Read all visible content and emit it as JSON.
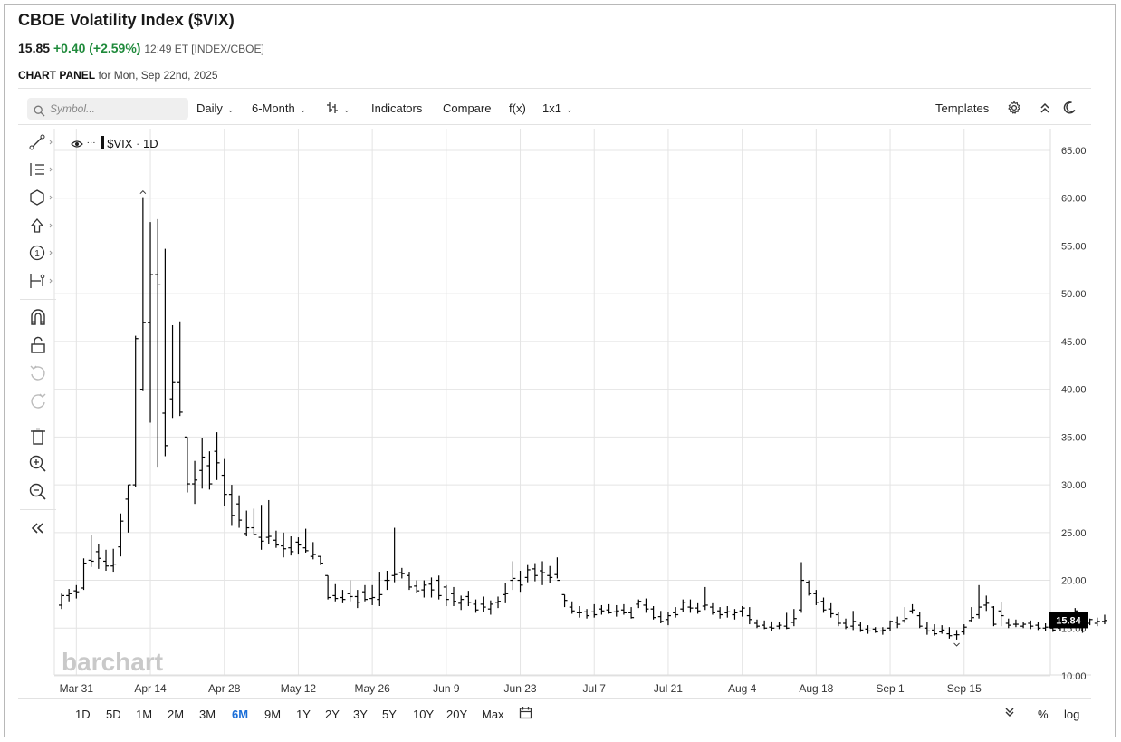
{
  "header": {
    "title": "CBOE Volatility Index ($VIX)",
    "last": "15.85",
    "change": "+0.40 (+2.59%)",
    "meta": "12:49 ET [INDEX/CBOE]",
    "panel_label": "CHART PANEL",
    "panel_date": "for Mon, Sep 22nd, 2025"
  },
  "toolbar": {
    "search_placeholder": "Symbol...",
    "interval": "Daily",
    "period": "6-Month",
    "indicators": "Indicators",
    "compare": "Compare",
    "fx": "f(x)",
    "layout": "1x1",
    "templates": "Templates"
  },
  "legend": {
    "symbol": "$VIX",
    "interval": "1D"
  },
  "watermark": "barchart",
  "price_badge": "15.84",
  "range_buttons": [
    "1D",
    "5D",
    "1M",
    "2M",
    "3M",
    "6M",
    "9M",
    "1Y",
    "2Y",
    "3Y",
    "5Y",
    "10Y",
    "20Y",
    "Max"
  ],
  "active_range": "6M",
  "bottom_right": {
    "percent": "%",
    "log": "log"
  },
  "colors": {
    "accent": "#1a6ed8",
    "change": "#1f8a3b",
    "bars": "#000000",
    "grid": "#e4e4e4",
    "badge": "#000000"
  },
  "chart_data": {
    "type": "ohlc",
    "title": "$VIX",
    "ylim": [
      10,
      65
    ],
    "y_ticks": [
      "65.00",
      "60.00",
      "55.00",
      "50.00",
      "45.00",
      "40.00",
      "35.00",
      "30.00",
      "25.00",
      "20.00",
      "15.00",
      "10.00"
    ],
    "x_labels": [
      {
        "label": "Mar 31",
        "index": 2
      },
      {
        "label": "Apr 14",
        "index": 12
      },
      {
        "label": "Apr 28",
        "index": 22
      },
      {
        "label": "May 12",
        "index": 32
      },
      {
        "label": "May 26",
        "index": 42
      },
      {
        "label": "Jun 9",
        "index": 52
      },
      {
        "label": "Jun 23",
        "index": 62
      },
      {
        "label": "Jul 7",
        "index": 72
      },
      {
        "label": "Jul 21",
        "index": 82
      },
      {
        "label": "Aug 4",
        "index": 92
      },
      {
        "label": "Aug 18",
        "index": 102
      },
      {
        "label": "Sep 1",
        "index": 112
      },
      {
        "label": "Sep 15",
        "index": 122
      }
    ],
    "ohlc": [
      [
        17.4,
        18.6,
        17.0,
        18.4
      ],
      [
        18.4,
        19.1,
        17.8,
        18.6
      ],
      [
        18.9,
        19.5,
        18.1,
        18.8
      ],
      [
        19.2,
        22.3,
        19.0,
        21.8
      ],
      [
        22.1,
        24.7,
        21.4,
        22.0
      ],
      [
        23.0,
        23.8,
        21.2,
        22.3
      ],
      [
        22.0,
        23.2,
        21.0,
        21.5
      ],
      [
        21.5,
        23.3,
        20.9,
        21.7
      ],
      [
        23.5,
        27.0,
        22.5,
        26.2
      ],
      [
        28.5,
        30.0,
        25.0,
        30.0
      ],
      [
        30.0,
        45.6,
        29.8,
        45.3
      ],
      [
        40.0,
        60.1,
        39.8,
        47.0
      ],
      [
        47.0,
        57.5,
        36.5,
        52.0
      ],
      [
        52.0,
        57.8,
        31.8,
        51.0
      ],
      [
        37.5,
        54.7,
        33.0,
        34.1
      ],
      [
        39.0,
        46.7,
        37.0,
        40.7
      ],
      [
        40.7,
        47.1,
        37.2,
        37.6
      ],
      [
        35.0,
        35.0,
        29.2,
        30.1
      ],
      [
        30.1,
        32.5,
        28.0,
        30.5
      ],
      [
        31.5,
        34.9,
        29.6,
        32.9
      ],
      [
        32.0,
        33.5,
        29.5,
        30.1
      ],
      [
        33.5,
        35.5,
        30.5,
        32.3
      ],
      [
        31.0,
        32.7,
        27.8,
        29.0
      ],
      [
        29.0,
        30.0,
        25.7,
        26.8
      ],
      [
        28.0,
        28.9,
        25.5,
        26.3
      ],
      [
        24.9,
        27.3,
        24.6,
        25.5
      ],
      [
        25.5,
        27.5,
        24.7,
        24.8
      ],
      [
        24.5,
        27.9,
        23.2,
        24.1
      ],
      [
        24.5,
        28.4,
        23.8,
        24.6
      ],
      [
        24.2,
        25.2,
        23.4,
        23.7
      ],
      [
        23.6,
        25.0,
        22.4,
        23.3
      ],
      [
        23.4,
        24.6,
        22.6,
        23.0
      ],
      [
        24.0,
        24.5,
        22.7,
        23.7
      ],
      [
        23.4,
        25.4,
        22.9,
        23.1
      ],
      [
        22.5,
        24.0,
        22.2,
        22.7
      ],
      [
        22.5,
        22.5,
        21.6,
        21.8
      ],
      [
        20.5,
        20.5,
        18.0,
        18.2
      ],
      [
        18.4,
        19.6,
        17.8,
        18.1
      ],
      [
        18.2,
        19.0,
        17.6,
        18.0
      ],
      [
        18.6,
        20.0,
        17.8,
        18.3
      ],
      [
        18.3,
        19.0,
        17.1,
        17.7
      ],
      [
        18.8,
        19.5,
        17.8,
        18.0
      ],
      [
        18.1,
        19.5,
        17.4,
        18.2
      ],
      [
        18.0,
        20.9,
        17.3,
        18.5
      ],
      [
        20.0,
        21.0,
        19.0,
        20.0
      ],
      [
        20.5,
        25.5,
        19.8,
        20.6
      ],
      [
        20.8,
        21.3,
        20.2,
        20.7
      ],
      [
        20.5,
        20.9,
        19.0,
        19.3
      ],
      [
        19.4,
        20.0,
        18.7,
        18.9
      ],
      [
        19.0,
        20.0,
        18.2,
        19.5
      ],
      [
        19.6,
        20.3,
        18.2,
        19.0
      ],
      [
        20.0,
        20.5,
        18.0,
        18.4
      ],
      [
        19.3,
        19.5,
        17.3,
        18.0
      ],
      [
        18.6,
        19.3,
        17.3,
        17.8
      ],
      [
        17.6,
        18.4,
        16.9,
        18.0
      ],
      [
        18.3,
        18.9,
        17.3,
        17.7
      ],
      [
        17.5,
        18.0,
        16.6,
        16.9
      ],
      [
        17.5,
        18.3,
        16.7,
        17.2
      ],
      [
        17.0,
        17.9,
        16.4,
        17.5
      ],
      [
        17.7,
        18.3,
        17.1,
        17.8
      ],
      [
        18.5,
        19.7,
        17.6,
        18.6
      ],
      [
        20.0,
        22.0,
        19.0,
        20.2
      ],
      [
        20.0,
        21.0,
        18.8,
        19.5
      ],
      [
        20.3,
        21.6,
        19.8,
        21.1
      ],
      [
        21.2,
        21.8,
        19.9,
        20.5
      ],
      [
        21.0,
        22.0,
        19.5,
        20.8
      ],
      [
        20.5,
        21.5,
        19.7,
        20.3
      ],
      [
        20.6,
        22.4,
        20.2,
        20.0
      ],
      [
        18.5,
        18.5,
        17.2,
        17.9
      ],
      [
        17.2,
        17.8,
        16.5,
        16.8
      ],
      [
        16.6,
        17.3,
        16.1,
        16.6
      ],
      [
        16.7,
        17.0,
        16.0,
        16.3
      ],
      [
        16.7,
        17.5,
        16.1,
        16.4
      ],
      [
        17.0,
        17.4,
        16.4,
        16.8
      ],
      [
        16.9,
        17.5,
        16.5,
        16.6
      ],
      [
        16.7,
        17.4,
        16.2,
        16.8
      ],
      [
        16.9,
        17.5,
        16.4,
        16.6
      ],
      [
        16.6,
        17.2,
        16.0,
        16.1
      ],
      [
        17.5,
        18.0,
        17.1,
        17.8
      ],
      [
        17.4,
        18.1,
        16.6,
        17.0
      ],
      [
        17.0,
        17.3,
        15.9,
        16.1
      ],
      [
        16.2,
        16.8,
        15.5,
        15.7
      ],
      [
        15.9,
        16.7,
        15.3,
        16.3
      ],
      [
        16.6,
        17.2,
        16.1,
        16.4
      ],
      [
        17.0,
        18.0,
        16.7,
        17.7
      ],
      [
        17.2,
        18.0,
        16.6,
        17.1
      ],
      [
        17.1,
        17.6,
        16.5,
        16.8
      ],
      [
        17.3,
        19.3,
        16.9,
        17.4
      ],
      [
        17.2,
        17.6,
        16.4,
        16.6
      ],
      [
        16.8,
        17.2,
        16.0,
        16.4
      ],
      [
        16.6,
        17.3,
        16.1,
        16.7
      ],
      [
        16.4,
        17.0,
        15.9,
        16.6
      ],
      [
        16.8,
        17.3,
        16.2,
        17.1
      ],
      [
        16.3,
        17.2,
        15.4,
        15.9
      ],
      [
        15.5,
        15.9,
        15.0,
        15.2
      ],
      [
        15.3,
        15.8,
        14.9,
        15.0
      ],
      [
        15.1,
        15.7,
        14.7,
        15.0
      ],
      [
        15.2,
        15.6,
        14.9,
        15.3
      ],
      [
        15.2,
        16.6,
        14.9,
        15.0
      ],
      [
        15.6,
        17.0,
        15.2,
        16.0
      ],
      [
        16.9,
        21.9,
        16.6,
        20.0
      ],
      [
        19.8,
        20.0,
        18.4,
        18.6
      ],
      [
        18.6,
        19.0,
        17.4,
        17.7
      ],
      [
        17.8,
        18.2,
        16.6,
        16.9
      ],
      [
        17.0,
        17.6,
        16.1,
        16.5
      ],
      [
        16.4,
        16.7,
        15.2,
        15.5
      ],
      [
        15.5,
        16.0,
        14.9,
        15.1
      ],
      [
        15.2,
        16.8,
        14.8,
        15.7
      ],
      [
        15.3,
        15.6,
        14.6,
        14.8
      ],
      [
        14.9,
        15.3,
        14.4,
        14.7
      ],
      [
        14.9,
        15.1,
        14.5,
        14.6
      ],
      [
        14.7,
        15.1,
        14.3,
        14.8
      ],
      [
        15.0,
        15.8,
        14.7,
        15.7
      ],
      [
        15.6,
        16.2,
        15.0,
        15.4
      ],
      [
        15.8,
        17.2,
        15.5,
        16.0
      ],
      [
        16.8,
        17.5,
        16.5,
        16.9
      ],
      [
        16.3,
        16.7,
        15.0,
        15.2
      ],
      [
        15.0,
        15.6,
        14.3,
        14.7
      ],
      [
        14.8,
        15.4,
        14.2,
        14.4
      ],
      [
        14.6,
        15.3,
        14.4,
        14.8
      ],
      [
        14.4,
        15.1,
        13.9,
        14.2
      ],
      [
        14.3,
        14.8,
        13.8,
        14.3
      ],
      [
        14.6,
        15.4,
        14.3,
        15.1
      ],
      [
        15.8,
        17.2,
        15.6,
        16.1
      ],
      [
        16.4,
        19.5,
        16.0,
        17.2
      ],
      [
        17.4,
        18.4,
        16.8,
        17.6
      ],
      [
        17.2,
        17.3,
        15.2,
        15.4
      ],
      [
        16.8,
        17.7,
        15.2,
        16.3
      ],
      [
        15.5,
        16.0,
        15.0,
        15.3
      ],
      [
        15.4,
        15.9,
        15.1,
        15.4
      ],
      [
        15.2,
        15.6,
        15.0,
        15.4
      ],
      [
        15.5,
        15.8,
        14.9,
        15.2
      ],
      [
        15.3,
        15.6,
        14.8,
        15.0
      ],
      [
        15.0,
        15.5,
        14.7,
        15.1
      ],
      [
        15.0,
        15.3,
        14.6,
        14.8
      ],
      [
        15.0,
        16.0,
        14.7,
        15.6
      ],
      [
        16.0,
        16.5,
        15.2,
        16.3
      ],
      [
        16.3,
        17.1,
        16.0,
        16.8
      ],
      [
        16.2,
        16.5,
        14.5,
        15.4
      ],
      [
        15.5,
        16.0,
        15.3,
        15.9
      ],
      [
        15.5,
        16.1,
        15.2,
        15.7
      ],
      [
        15.7,
        16.4,
        15.4,
        15.8
      ]
    ]
  }
}
